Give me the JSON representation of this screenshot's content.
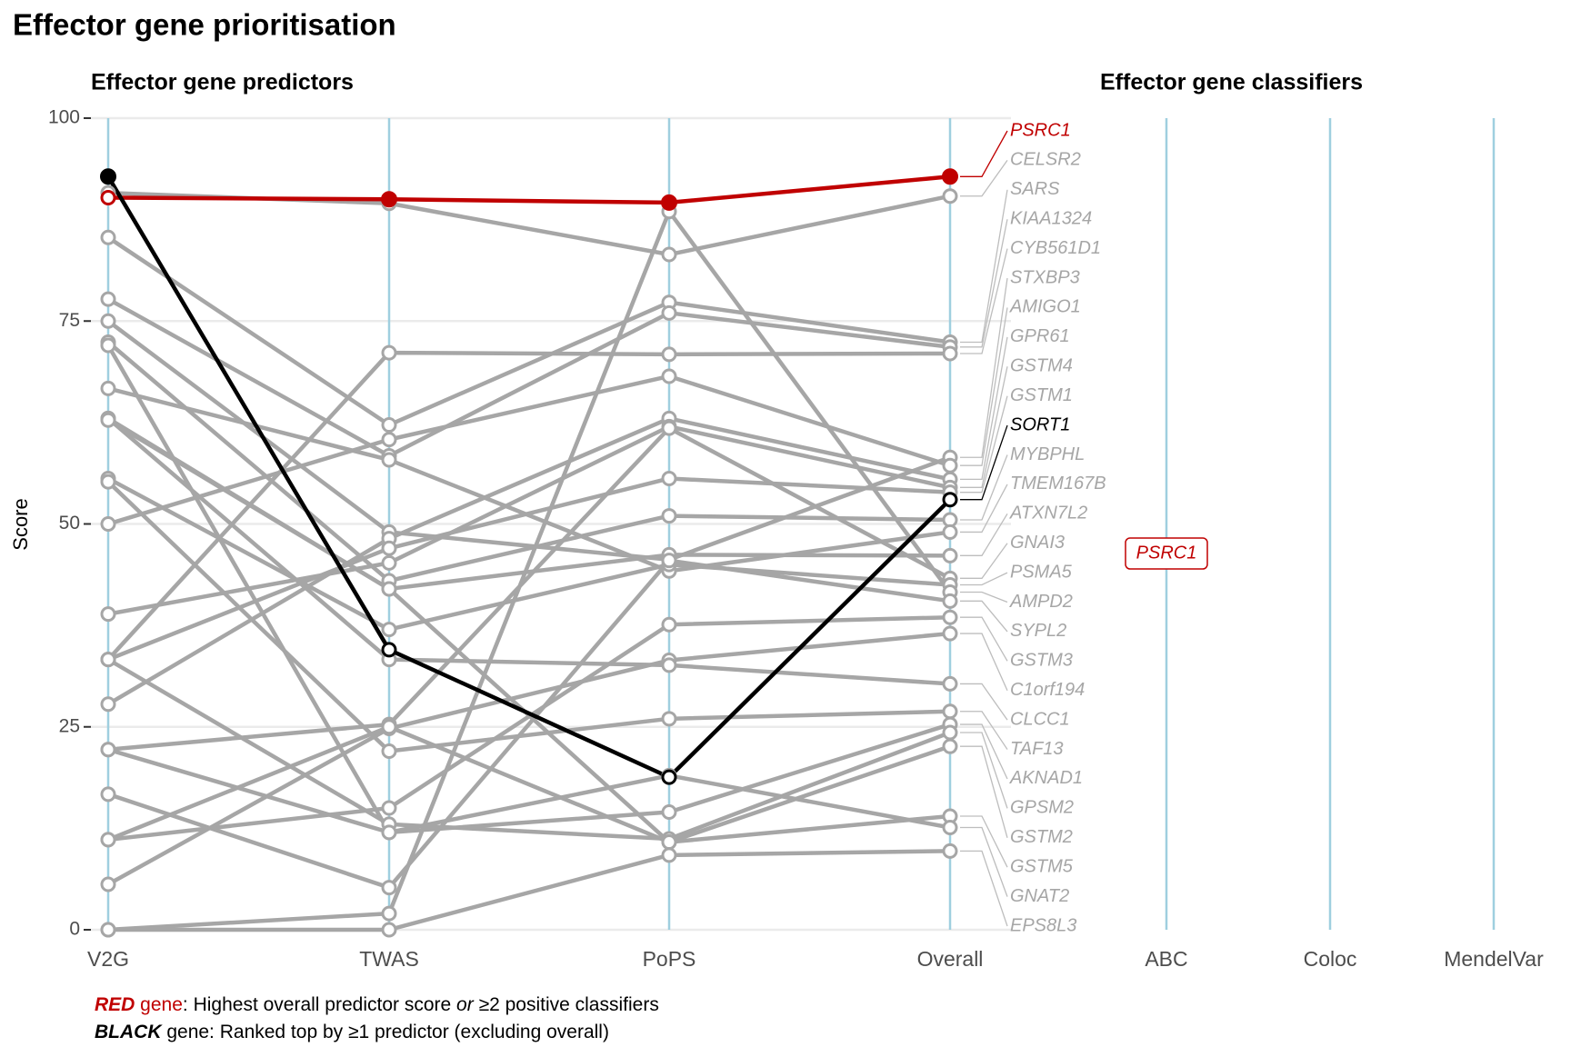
{
  "chart_data": {
    "type": "line",
    "title": "Effector gene prioritisation",
    "subtitle": "Effector gene predictors",
    "classifier_title": "Effector gene classifiers",
    "y_label": "Score",
    "categories": [
      "V2G",
      "TWAS",
      "PoPS",
      "Overall"
    ],
    "classifier_categories": [
      "ABC",
      "Coloc",
      "MendelVar"
    ],
    "classifier_labels": [
      {
        "gene": "PSRC1",
        "classifier": "ABC",
        "color": "#c00000"
      }
    ],
    "ylim": [
      0,
      100
    ],
    "yticks": [
      0,
      25,
      50,
      75,
      100
    ],
    "grid": true,
    "series": [
      {
        "name": "PSRC1",
        "color": "#c00000",
        "values": [
          90.2,
          90,
          89.6,
          92.8
        ]
      },
      {
        "name": "CELSR2",
        "color": "#a6a6a6",
        "values": [
          90.8,
          89.5,
          83.2,
          90.4
        ]
      },
      {
        "name": "SARS",
        "color": "#a6a6a6",
        "values": [
          85.3,
          62.2,
          77.3,
          72.4
        ]
      },
      {
        "name": "KIAA1324",
        "color": "#a6a6a6",
        "values": [
          77.7,
          58.4,
          76,
          71.8
        ]
      },
      {
        "name": "CYB561D1",
        "color": "#a6a6a6",
        "values": [
          33.3,
          71.1,
          70.9,
          71
        ]
      },
      {
        "name": "STXBP3",
        "color": "#a6a6a6",
        "values": [
          75,
          49,
          45.6,
          58.2
        ]
      },
      {
        "name": "AMIGO1",
        "color": "#a6a6a6",
        "values": [
          50,
          60.4,
          68.2,
          57.2
        ]
      },
      {
        "name": "GPR61",
        "color": "#a6a6a6",
        "values": [
          27.8,
          48.2,
          63,
          55.5
        ]
      },
      {
        "name": "GSTM4",
        "color": "#a6a6a6",
        "values": [
          38.9,
          45.2,
          62,
          54.5
        ]
      },
      {
        "name": "GSTM1",
        "color": "#a6a6a6",
        "values": [
          33.3,
          47,
          55.6,
          53.9
        ]
      },
      {
        "name": "SORT1",
        "color": "#000000",
        "values": [
          92.8,
          34.5,
          18.8,
          53
        ]
      },
      {
        "name": "MYBPHL",
        "color": "#a6a6a6",
        "values": [
          72.4,
          43,
          51,
          50.5
        ]
      },
      {
        "name": "TMEM167B",
        "color": "#a6a6a6",
        "values": [
          66.7,
          57.9,
          44.2,
          49
        ]
      },
      {
        "name": "ATXN7L2",
        "color": "#a6a6a6",
        "values": [
          63,
          42,
          46.2,
          46.1
        ]
      },
      {
        "name": "GNAI3",
        "color": "#a6a6a6",
        "values": [
          22.2,
          25.3,
          61.8,
          43.3
        ]
      },
      {
        "name": "PSMA5",
        "color": "#a6a6a6",
        "values": [
          55.6,
          37,
          45,
          42.5
        ]
      },
      {
        "name": "AMPD2",
        "color": "#a6a6a6",
        "values": [
          0,
          2,
          88.5,
          41.6
        ]
      },
      {
        "name": "SYPL2",
        "color": "#a6a6a6",
        "values": [
          16.7,
          5.2,
          45.5,
          40.5
        ]
      },
      {
        "name": "GSTM3",
        "color": "#a6a6a6",
        "values": [
          11.1,
          15,
          37.6,
          38.5
        ]
      },
      {
        "name": "C1orf194",
        "color": "#a6a6a6",
        "values": [
          5.6,
          24.8,
          33.2,
          36.5
        ]
      },
      {
        "name": "CLCC1",
        "color": "#a6a6a6",
        "values": [
          63,
          33.3,
          32.6,
          30.3
        ]
      },
      {
        "name": "TAF13",
        "color": "#a6a6a6",
        "values": [
          55.2,
          22,
          26,
          26.9
        ]
      },
      {
        "name": "AKNAD1",
        "color": "#a6a6a6",
        "values": [
          72,
          12,
          14.5,
          25.3
        ]
      },
      {
        "name": "GPSM2",
        "color": "#a6a6a6",
        "values": [
          33.3,
          13,
          11.2,
          24.3
        ]
      },
      {
        "name": "GSTM2",
        "color": "#a6a6a6",
        "values": [
          62.8,
          42,
          10.8,
          22.6
        ]
      },
      {
        "name": "GSTM5",
        "color": "#a6a6a6",
        "values": [
          11.1,
          25,
          10.8,
          14
        ]
      },
      {
        "name": "GNAT2",
        "color": "#a6a6a6",
        "values": [
          22.2,
          12,
          19,
          12.6
        ]
      },
      {
        "name": "EPS8L3",
        "color": "#a6a6a6",
        "values": [
          0,
          0,
          9.2,
          9.7
        ]
      }
    ],
    "notes": [
      [
        "RED",
        " gene",
        ": Highest overall predictor score ",
        "or",
        " ≥2 positive classifiers"
      ],
      [
        "BLACK",
        " gene: Ranked top by ≥1 predictor (excluding overall)"
      ]
    ]
  }
}
